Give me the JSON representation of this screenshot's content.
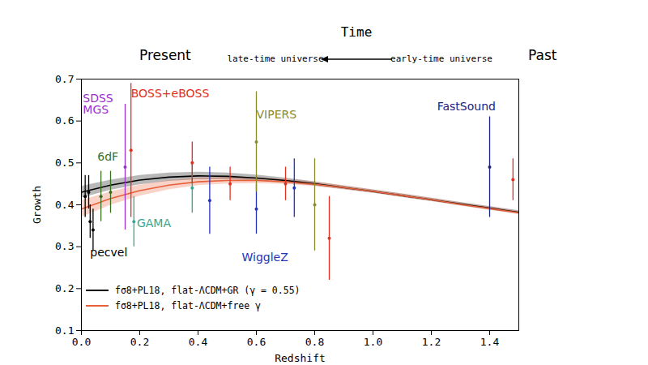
{
  "chart_data": {
    "type": "scatter",
    "x_label": "Redshift",
    "y_label": "Growth",
    "annotations": {
      "time": "Time",
      "present": "Present",
      "past": "Past",
      "late": "late-time universe",
      "early": "early-time universe"
    },
    "xlim": [
      0,
      1.5
    ],
    "ylim": [
      0.1,
      0.7
    ],
    "xticks": [
      {
        "value": 0,
        "label": "0.0"
      },
      0.2,
      0.4,
      0.6,
      0.8,
      {
        "value": 1,
        "label": "1.0"
      },
      1.2,
      1.4
    ],
    "yticks": [
      0.1,
      0.2,
      0.3,
      0.4,
      0.5,
      0.6,
      0.7
    ],
    "grid": false,
    "legend": "lower left",
    "series": [
      {
        "name": "pecvel",
        "color": "#000000",
        "marker": "circle",
        "x": [
          0.013,
          0.025,
          0.03,
          0.04
        ],
        "values": [
          0.42,
          0.43,
          0.36,
          0.34
        ],
        "errors": [
          0.05,
          0.04,
          0.04,
          0.05
        ]
      },
      {
        "name": "6dF",
        "color": "#3a6e1f",
        "marker": "circle",
        "x": [
          0.067,
          0.1
        ],
        "values": [
          0.42,
          0.43
        ],
        "errors": [
          0.06,
          0.05
        ]
      },
      {
        "name": "SDSS MGS",
        "color": "#9b30d0",
        "marker": "circle",
        "x": [
          0.15
        ],
        "values": [
          0.49
        ],
        "errors": [
          0.15
        ]
      },
      {
        "name": "GAMA",
        "color": "#3aa58f",
        "marker": "circle",
        "x": [
          0.18,
          0.38
        ],
        "values": [
          0.36,
          0.44
        ],
        "errors": [
          0.06,
          0.06
        ]
      },
      {
        "name": "BOSS+eBOSS",
        "color": "#e03020",
        "marker": "circle",
        "x": [
          0.17,
          0.38,
          0.51,
          0.7,
          0.85,
          1.48
        ],
        "values": [
          0.53,
          0.5,
          0.45,
          0.45,
          0.32,
          0.46
        ],
        "errors": [
          0.16,
          0.05,
          0.04,
          0.04,
          0.1,
          0.05
        ]
      },
      {
        "name": "WiggleZ",
        "color": "#2233bb",
        "marker": "circle",
        "x": [
          0.44,
          0.6,
          0.73
        ],
        "values": [
          0.41,
          0.39,
          0.44
        ],
        "errors": [
          0.08,
          0.06,
          0.07
        ]
      },
      {
        "name": "VIPERS",
        "color": "#8a8a2a",
        "marker": "circle",
        "x": [
          0.6,
          0.8
        ],
        "values": [
          0.55,
          0.4
        ],
        "errors": [
          0.12,
          0.11
        ]
      },
      {
        "name": "FastSound",
        "color": "#1a237e",
        "marker": "circle",
        "x": [
          1.4
        ],
        "values": [
          0.49
        ],
        "errors": [
          0.12
        ]
      },
      {
        "name": "fσ8+PL18, flat-ΛCDM+GR (γ = 0.55)",
        "type": "line",
        "color": "#000000",
        "x": [
          0,
          0.1,
          0.2,
          0.3,
          0.4,
          0.5,
          0.6,
          0.7,
          0.8,
          0.9,
          1.0,
          1.1,
          1.2,
          1.3,
          1.4,
          1.5
        ],
        "values": [
          0.43,
          0.447,
          0.459,
          0.466,
          0.469,
          0.468,
          0.464,
          0.458,
          0.45,
          0.441,
          0.432,
          0.422,
          0.412,
          0.402,
          0.392,
          0.382
        ],
        "lower": [
          0.416,
          0.435,
          0.448,
          0.456,
          0.46,
          0.46,
          0.457,
          0.452,
          0.445,
          0.437,
          0.428,
          0.418,
          0.408,
          0.398,
          0.388,
          0.378
        ],
        "upper": [
          0.444,
          0.459,
          0.47,
          0.476,
          0.478,
          0.476,
          0.471,
          0.464,
          0.455,
          0.445,
          0.436,
          0.426,
          0.416,
          0.406,
          0.396,
          0.386
        ]
      },
      {
        "name": "fσ8+PL18, flat-ΛCDM+free γ",
        "type": "line",
        "color": "#e8603a",
        "x": [
          0,
          0.1,
          0.2,
          0.3,
          0.4,
          0.5,
          0.6,
          0.7,
          0.8,
          0.9,
          1.0,
          1.1,
          1.2,
          1.3,
          1.4,
          1.5
        ],
        "values": [
          0.39,
          0.415,
          0.434,
          0.447,
          0.455,
          0.458,
          0.458,
          0.455,
          0.449,
          0.441,
          0.432,
          0.422,
          0.412,
          0.401,
          0.391,
          0.381
        ],
        "lower": [
          0.37,
          0.399,
          0.421,
          0.436,
          0.446,
          0.45,
          0.451,
          0.449,
          0.444,
          0.436,
          0.428,
          0.418,
          0.408,
          0.397,
          0.387,
          0.377
        ],
        "upper": [
          0.41,
          0.431,
          0.447,
          0.458,
          0.464,
          0.466,
          0.465,
          0.461,
          0.454,
          0.446,
          0.436,
          0.426,
          0.416,
          0.405,
          0.395,
          0.385
        ]
      }
    ]
  }
}
